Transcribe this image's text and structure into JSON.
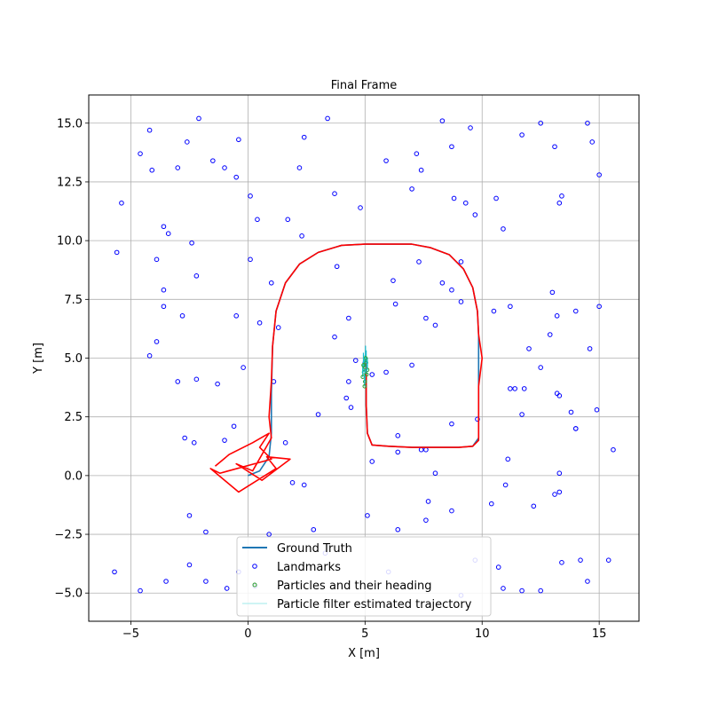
{
  "chart_data": {
    "type": "line",
    "title": "Final Frame",
    "xlabel": "X [m]",
    "ylabel": "Y [m]",
    "xlim": [
      -6.8,
      16.7
    ],
    "ylim": [
      -6.2,
      16.2
    ],
    "xticks": [
      -5,
      0,
      5,
      10,
      15
    ],
    "xtick_labels": [
      "−5",
      "0",
      "5",
      "10",
      "15"
    ],
    "yticks": [
      -5.0,
      -2.5,
      0.0,
      2.5,
      5.0,
      7.5,
      10.0,
      12.5,
      15.0
    ],
    "ytick_labels": [
      "−5.0",
      "−2.5",
      "0.0",
      "2.5",
      "5.0",
      "7.5",
      "10.0",
      "12.5",
      "15.0"
    ],
    "grid": true,
    "legend_position": "lower-center",
    "colors": {
      "ground_truth": "#1f77b4",
      "landmarks": "#0000ff",
      "particles": "#2ca02c",
      "estimated": "#ff0000",
      "heading": "#17becf"
    },
    "series": [
      {
        "name": "Ground Truth",
        "type": "line",
        "x": [
          0.0,
          0.5,
          0.9,
          1.0,
          1.0,
          1.05,
          1.2,
          1.6,
          2.2,
          3.0,
          4.0,
          5.0,
          6.0,
          7.0,
          7.8,
          8.6,
          9.2,
          9.6,
          9.8,
          9.85,
          9.85,
          9.85,
          9.85,
          9.85,
          9.6,
          9.0,
          8.0,
          7.0,
          6.0,
          5.3,
          5.1,
          5.05,
          5.05,
          5.05
        ],
        "y": [
          0.0,
          0.2,
          0.8,
          1.8,
          3.5,
          5.5,
          7.0,
          8.2,
          9.0,
          9.5,
          9.8,
          9.85,
          9.85,
          9.85,
          9.7,
          9.4,
          8.8,
          8.0,
          7.0,
          6.0,
          5.0,
          4.0,
          3.0,
          1.6,
          1.25,
          1.2,
          1.2,
          1.2,
          1.25,
          1.3,
          1.8,
          3.0,
          4.0,
          4.8
        ]
      },
      {
        "name": "Particle filter estimated trajectory",
        "type": "line",
        "x": [
          -1.4,
          -0.8,
          0.2,
          0.9,
          0.5,
          1.0,
          -1.2,
          -1.6,
          -0.4,
          1.2,
          0.8,
          1.8,
          0.6,
          -0.5,
          0.2,
          1.0,
          0.9,
          1.0,
          1.05,
          1.2,
          1.6,
          2.2,
          3.0,
          4.0,
          5.0,
          6.0,
          7.0,
          7.8,
          8.6,
          9.2,
          9.6,
          9.8,
          9.85,
          10.0,
          9.85,
          9.85,
          9.85,
          9.85,
          9.6,
          9.0,
          8.0,
          7.0,
          6.0,
          5.3,
          5.1,
          5.05,
          5.05,
          5.05
        ],
        "y": [
          0.4,
          0.9,
          1.4,
          1.8,
          1.2,
          0.7,
          0.1,
          0.3,
          -0.7,
          0.3,
          0.8,
          0.7,
          -0.2,
          0.5,
          0.2,
          1.6,
          2.5,
          4.0,
          5.5,
          7.0,
          8.2,
          9.0,
          9.5,
          9.8,
          9.85,
          9.85,
          9.85,
          9.7,
          9.4,
          8.8,
          8.0,
          7.0,
          6.0,
          5.0,
          3.8,
          3.0,
          2.0,
          1.5,
          1.25,
          1.2,
          1.2,
          1.2,
          1.25,
          1.3,
          1.8,
          3.0,
          4.0,
          4.8
        ]
      },
      {
        "name": "Particles and their heading",
        "type": "scatter",
        "x": [
          4.95,
          5.0,
          5.05,
          4.9,
          5.1,
          5.0,
          4.98,
          5.02,
          4.93,
          5.07
        ],
        "y": [
          4.4,
          4.6,
          4.8,
          4.2,
          4.5,
          4.0,
          3.8,
          5.0,
          4.7,
          4.3
        ]
      },
      {
        "name": "Landmarks",
        "type": "scatter",
        "x": [
          -4.2,
          -2.1,
          -3.0,
          -2.6,
          -1.5,
          -1.0,
          -0.4,
          -0.5,
          0.1,
          0.4,
          1.7,
          2.2,
          2.4,
          3.4,
          3.7,
          4.8,
          5.9,
          7.0,
          7.2,
          7.4,
          8.3,
          8.7,
          8.8,
          9.3,
          9.5,
          9.7,
          10.6,
          10.9,
          11.7,
          12.5,
          13.1,
          13.3,
          13.4,
          14.5,
          14.7,
          15.0,
          -5.4,
          -4.6,
          -4.1,
          -3.6,
          -3.4,
          -2.4,
          -2.2,
          -3.9,
          -5.6,
          -3.6,
          -3.6,
          -2.8,
          -3.9,
          -4.2,
          -3.0,
          -2.2,
          -1.3,
          -0.5,
          -0.2,
          0.1,
          0.5,
          1.0,
          1.3,
          1.1,
          2.3,
          3.0,
          3.8,
          4.3,
          3.7,
          4.4,
          4.6,
          5.3,
          5.0,
          4.3,
          5.9,
          6.2,
          6.3,
          7.0,
          7.3,
          7.6,
          8.0,
          8.3,
          8.7,
          9.1,
          9.1,
          9.8,
          10.5,
          11.2,
          11.4,
          11.8,
          11.7,
          12.0,
          12.5,
          12.9,
          13.0,
          13.2,
          13.3,
          13.8,
          14.0,
          14.0,
          14.6,
          15.0,
          14.9,
          5.3,
          6.4,
          6.4,
          7.4,
          7.6,
          8.0,
          8.7,
          10.4,
          11.0,
          11.1,
          12.2,
          13.1,
          13.3,
          13.3,
          15.6,
          -2.7,
          -2.3,
          -1.0,
          -0.6,
          1.6,
          1.9,
          2.4,
          5.1,
          -2.5,
          -1.8,
          0.9,
          2.8,
          6.4,
          7.6,
          7.7,
          8.7,
          -5.7,
          -4.6,
          -3.5,
          -2.5,
          -1.8,
          -0.9,
          -0.4,
          0.3,
          3.3,
          6.0,
          9.1,
          9.7,
          10.7,
          10.9,
          11.7,
          12.5,
          13.4,
          14.2,
          14.5,
          15.4,
          4.2,
          13.2,
          11.2,
          14.0
        ],
        "y": [
          14.7,
          15.2,
          13.1,
          14.2,
          13.4,
          13.1,
          14.3,
          12.7,
          11.9,
          10.9,
          10.9,
          13.1,
          14.4,
          15.2,
          12.0,
          11.4,
          13.4,
          12.2,
          13.7,
          13.0,
          15.1,
          14.0,
          11.8,
          11.6,
          14.8,
          11.1,
          11.8,
          10.5,
          14.5,
          15.0,
          14.0,
          11.6,
          11.9,
          15.0,
          14.2,
          12.8,
          11.6,
          13.7,
          13.0,
          10.6,
          10.3,
          9.9,
          8.5,
          9.2,
          9.5,
          7.9,
          7.2,
          6.8,
          5.7,
          5.1,
          4.0,
          4.1,
          3.9,
          6.8,
          4.6,
          9.2,
          6.5,
          8.2,
          6.3,
          4.0,
          10.2,
          2.6,
          8.9,
          6.7,
          5.9,
          2.9,
          4.9,
          4.3,
          4.8,
          4.0,
          4.4,
          8.3,
          7.3,
          4.7,
          9.1,
          6.7,
          6.4,
          8.2,
          7.9,
          9.1,
          7.4,
          2.4,
          7.0,
          7.2,
          3.7,
          3.7,
          2.6,
          5.4,
          4.6,
          6.0,
          7.8,
          6.8,
          3.4,
          2.7,
          7.0,
          2.0,
          5.4,
          7.2,
          2.8,
          0.6,
          1.7,
          1.0,
          1.1,
          1.1,
          0.1,
          2.2,
          -1.2,
          -0.4,
          0.7,
          -1.3,
          -0.8,
          -0.7,
          0.1,
          1.1,
          1.6,
          1.4,
          1.5,
          2.1,
          1.4,
          -0.3,
          -0.4,
          -1.7,
          -1.7,
          -2.4,
          -2.5,
          -2.3,
          -2.3,
          -1.9,
          -1.1,
          -1.5,
          -4.1,
          -4.9,
          -4.5,
          -3.8,
          -4.5,
          -4.8,
          -4.1,
          -4.7,
          -3.3,
          -4.1,
          -5.1,
          -3.6,
          -3.9,
          -4.8,
          -4.9,
          -4.9,
          -3.7,
          -3.6,
          -4.5,
          -3.6,
          3.3,
          3.5,
          3.7,
          2.0
        ]
      }
    ]
  }
}
